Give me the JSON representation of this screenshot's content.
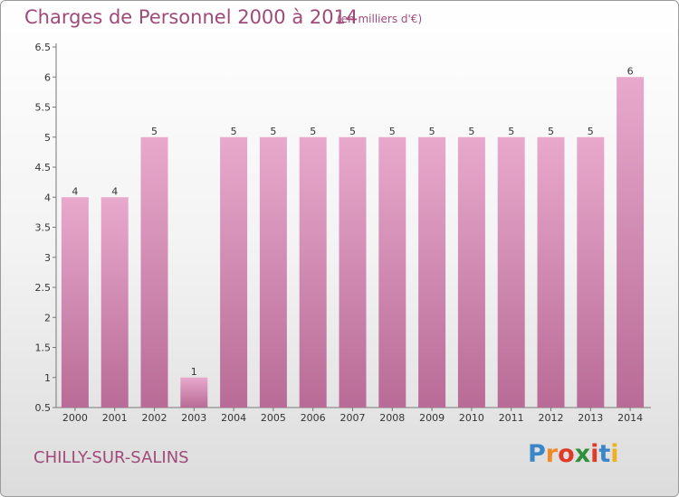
{
  "header": {
    "title": "Charges de Personnel 2000 à 2014",
    "subtitle": "(en milliers d'€)"
  },
  "footer": {
    "city": "CHILLY-SUR-SALINS"
  },
  "logo": {
    "letters": [
      {
        "ch": "P",
        "color": "#3a86c8"
      },
      {
        "ch": "r",
        "color": "#f08a24"
      },
      {
        "ch": "o",
        "color": "#e03a2a"
      },
      {
        "ch": "x",
        "color": "#2f8f3a"
      },
      {
        "ch": "i",
        "color": "#e03a2a"
      },
      {
        "ch": "t",
        "color": "#3a86c8"
      },
      {
        "ch": "i",
        "color": "#f0b020"
      }
    ]
  },
  "colors": {
    "bar_top": "#e8a9cc",
    "bar_bottom": "#b86b96",
    "accent": "#a04a7a"
  },
  "chart_data": {
    "type": "bar",
    "title": "Charges de Personnel 2000 à 2014",
    "subtitle": "(en milliers d'€)",
    "categories": [
      "2000",
      "2001",
      "2002",
      "2003",
      "2004",
      "2005",
      "2006",
      "2007",
      "2008",
      "2009",
      "2010",
      "2011",
      "2012",
      "2013",
      "2014"
    ],
    "values": [
      4,
      4,
      5,
      1,
      5,
      5,
      5,
      5,
      5,
      5,
      5,
      5,
      5,
      5,
      6
    ],
    "value_labels": [
      "4",
      "4",
      "5",
      "1",
      "5",
      "5",
      "5",
      "5",
      "5",
      "5",
      "5",
      "5",
      "5",
      "5",
      "6"
    ],
    "yticks": [
      "0.5",
      "1",
      "1.5",
      "2",
      "2.5",
      "3",
      "3.5",
      "4",
      "4.5",
      "5",
      "5.5",
      "6",
      "6.5"
    ],
    "ylim": [
      0.5,
      6.5
    ],
    "grid": false,
    "legend": "none"
  }
}
